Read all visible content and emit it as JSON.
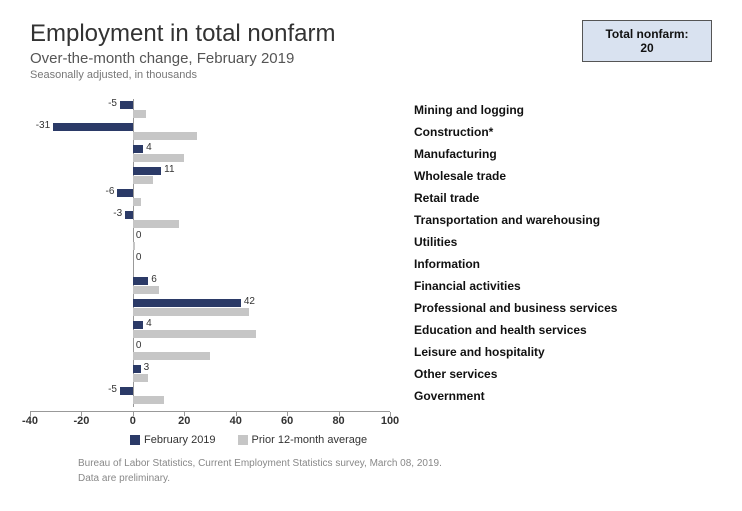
{
  "title": "Employment in total nonfarm",
  "subtitle": "Over-the-month change, February 2019",
  "note": "Seasonally adjusted, in thousands",
  "callout": {
    "line1": "Total nonfarm:",
    "line2": "20"
  },
  "chart": {
    "type": "bar",
    "xmin": -40,
    "xmax": 100,
    "xtick_step": 20,
    "primary_color": "#2b3a67",
    "secondary_color": "#c6c6c6",
    "axis_color": "#999999",
    "label_fontsize": 12,
    "value_fontsize": 10,
    "categories": [
      {
        "label": "Mining and logging",
        "primary": -5,
        "secondary": 5
      },
      {
        "label": "Construction*",
        "primary": -31,
        "secondary": 25
      },
      {
        "label": "Manufacturing",
        "primary": 4,
        "secondary": 20
      },
      {
        "label": "Wholesale trade",
        "primary": 11,
        "secondary": 8
      },
      {
        "label": "Retail trade",
        "primary": -6,
        "secondary": 3
      },
      {
        "label": "Transportation and warehousing",
        "primary": -3,
        "secondary": 18
      },
      {
        "label": "Utilities",
        "primary": 0,
        "secondary": 1
      },
      {
        "label": "Information",
        "primary": 0,
        "secondary": 0
      },
      {
        "label": "Financial activities",
        "primary": 6,
        "secondary": 10
      },
      {
        "label": "Professional and business services",
        "primary": 42,
        "secondary": 45
      },
      {
        "label": "Education and health services",
        "primary": 4,
        "secondary": 48
      },
      {
        "label": "Leisure and hospitality",
        "primary": 0,
        "secondary": 30
      },
      {
        "label": "Other services",
        "primary": 3,
        "secondary": 6
      },
      {
        "label": "Government",
        "primary": -5,
        "secondary": 12
      }
    ],
    "series": [
      {
        "name": "February 2019",
        "color": "#2b3a67"
      },
      {
        "name": "Prior 12-month average",
        "color": "#c6c6c6"
      }
    ]
  },
  "footer": {
    "line1": "Bureau of Labor Statistics, Current Employment Statistics survey, March 08, 2019.",
    "line2": "Data are preliminary."
  }
}
